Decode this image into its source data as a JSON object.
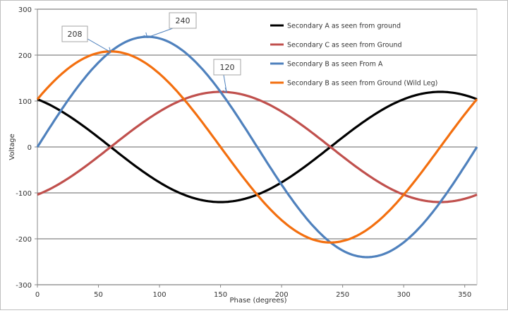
{
  "chart_data": {
    "type": "line",
    "title": "",
    "xlabel": "Phase (degrees)",
    "ylabel": "Voltage",
    "xlim": [
      0,
      360
    ],
    "ylim": [
      -300,
      300
    ],
    "x_ticks": [
      0,
      50,
      100,
      150,
      200,
      250,
      300,
      350
    ],
    "y_ticks": [
      300,
      200,
      100,
      0,
      -100,
      -200,
      -300
    ],
    "x_tick_labels": [
      "0",
      "50",
      "100",
      "150",
      "200",
      "250",
      "300",
      "350"
    ],
    "y_tick_labels": [
      "300",
      "200",
      "100",
      "0",
      "-100",
      "-200",
      "-300"
    ],
    "grid": "horizontal",
    "legend_position": "top-right",
    "series": [
      {
        "name": "Secondary A as seen from ground",
        "color": "#000000",
        "amplitude": 120,
        "peak_at_deg": 330
      },
      {
        "name": "Secondary C as seen from Ground",
        "color": "#c0504d",
        "amplitude": 120,
        "peak_at_deg": 150
      },
      {
        "name": "Secondary B as seen From A",
        "color": "#4f81bd",
        "amplitude": 240,
        "peak_at_deg": 90
      },
      {
        "name": "Secondary B as seen from Ground (Wild Leg)",
        "color": "#f36f0f",
        "amplitude": 208,
        "peak_at_deg": 60
      }
    ],
    "annotations": [
      {
        "text": "208",
        "point": [
          60,
          208
        ]
      },
      {
        "text": "240",
        "point": [
          90,
          240
        ]
      },
      {
        "text": "120",
        "point": [
          155,
          120
        ]
      }
    ]
  }
}
